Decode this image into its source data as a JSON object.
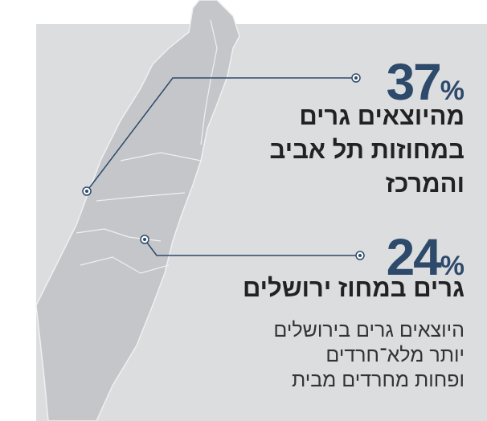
{
  "stats": [
    {
      "number": 37,
      "unit": "%",
      "lines": [
        "מהיוצאים גרים",
        "במחוזות תל אביב",
        "והמרכז"
      ]
    },
    {
      "number": 24,
      "unit": "%",
      "lines": [
        "גרים במחוז ירושלים"
      ]
    }
  ],
  "note": [
    "היוצאים גרים בירושלים",
    "יותר מלא־חרדים",
    "ופחות מחרדים מבית"
  ]
}
